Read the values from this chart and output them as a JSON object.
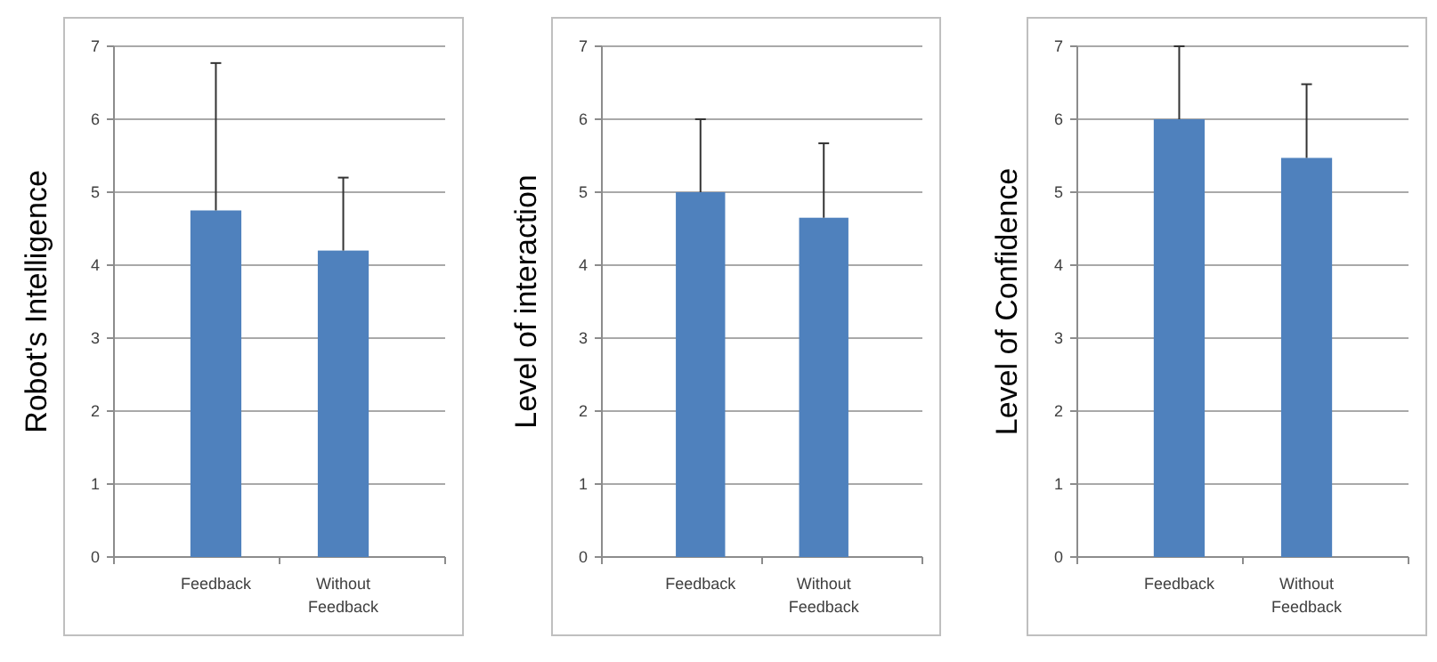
{
  "chart_data": [
    {
      "type": "bar",
      "ylabel": "Robot's Intelligence",
      "categories": [
        "Feedback",
        "Without Feedback"
      ],
      "values": [
        4.75,
        4.2
      ],
      "errors": [
        [
          4.75,
          6.77
        ],
        [
          4.2,
          5.2
        ]
      ],
      "color": "#4f81bd",
      "ylim": [
        0,
        7
      ],
      "yticks": [
        0,
        1,
        2,
        3,
        4,
        5,
        6,
        7
      ],
      "grid": "y"
    },
    {
      "type": "bar",
      "ylabel": "Level of interaction",
      "categories": [
        "Feedback",
        "Without Feedback"
      ],
      "values": [
        5.0,
        4.65
      ],
      "errors": [
        [
          5.0,
          6.0
        ],
        [
          4.65,
          5.67
        ]
      ],
      "color": "#4f81bd",
      "ylim": [
        0,
        7
      ],
      "yticks": [
        0,
        1,
        2,
        3,
        4,
        5,
        6,
        7
      ],
      "grid": "y"
    },
    {
      "type": "bar",
      "ylabel": "Level of Confidence",
      "categories": [
        "Feedback",
        "Without Feedback"
      ],
      "values": [
        6.0,
        5.47
      ],
      "errors": [
        [
          6.0,
          7.0
        ],
        [
          5.47,
          6.48
        ]
      ],
      "color": "#4f81bd",
      "ylim": [
        0,
        7
      ],
      "yticks": [
        0,
        1,
        2,
        3,
        4,
        5,
        6,
        7
      ],
      "grid": "y"
    }
  ]
}
